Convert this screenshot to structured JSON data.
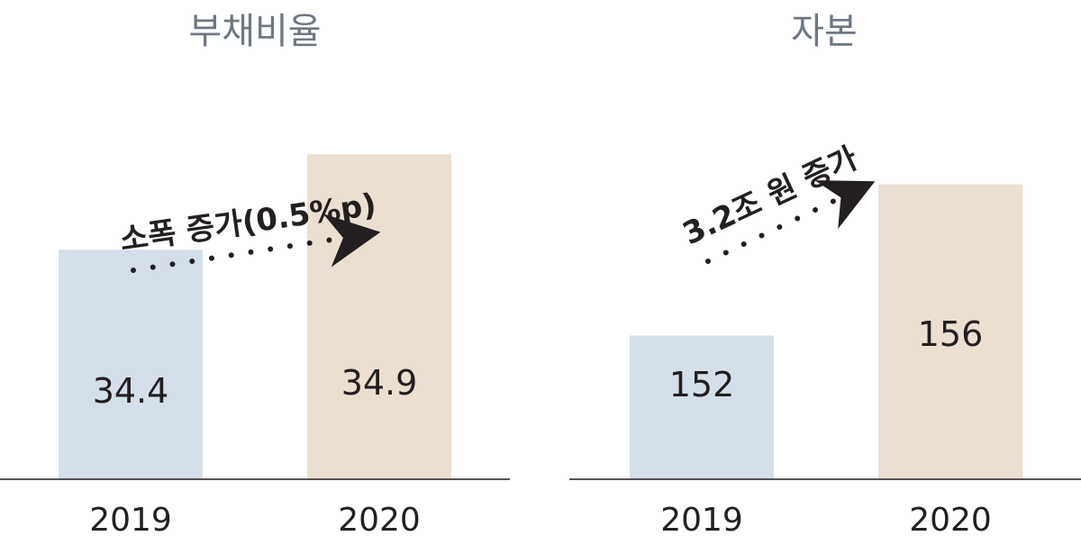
{
  "colors": {
    "bar_2019": "#d5dfea",
    "bar_2020": "#ebdfd2",
    "title": "#6f7782",
    "text": "#231f20",
    "axis": "#231f20"
  },
  "chart_data": [
    {
      "type": "bar",
      "title": "부채비율",
      "categories": [
        "2019",
        "2020"
      ],
      "values": [
        34.4,
        34.9
      ],
      "value_labels": [
        "34.4",
        "34.9"
      ],
      "ylim": [
        33.2,
        35.0
      ],
      "grid": false,
      "annotation": "소폭 증가(0.5%p)"
    },
    {
      "type": "bar",
      "title": "자본",
      "categories": [
        "2019",
        "2020"
      ],
      "values": [
        152,
        156
      ],
      "value_labels": [
        "152",
        "156"
      ],
      "ylim": [
        148.2,
        157.3
      ],
      "grid": false,
      "annotation": "3.2조 원 증가"
    }
  ]
}
